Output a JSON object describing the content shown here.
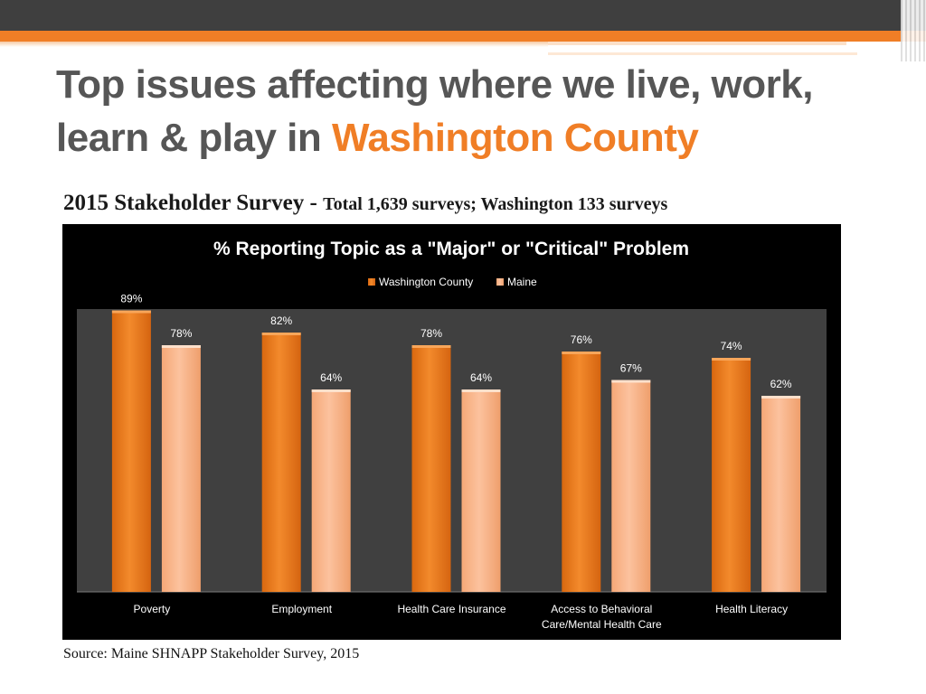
{
  "slide": {
    "title_part1": "Top issues affecting where we live, work,",
    "title_part2": "learn & play in ",
    "title_highlight": "Washington County",
    "subtitle_bold": "2015 Stakeholder Survey - ",
    "subtitle_rest": "Total 1,639 surveys; Washington 133 surveys",
    "source": "Source: Maine SHNAPP Stakeholder Survey, 2015"
  },
  "colors": {
    "accent": "#f07e26",
    "title_text": "#565656",
    "series_washington": "#ee7d1e",
    "series_maine": "#fbb588",
    "plot_background": "#404040"
  },
  "chart_data": {
    "type": "bar",
    "title": "% Reporting Topic as a \"Major\" or \"Critical\" Problem",
    "categories": [
      [
        "Poverty"
      ],
      [
        "Employment"
      ],
      [
        "Health Care Insurance"
      ],
      [
        "Access to Behavioral",
        "Care/Mental Health Care"
      ],
      [
        "Health Literacy"
      ]
    ],
    "series": [
      {
        "name": "Washington County",
        "values": [
          89,
          82,
          78,
          76,
          74
        ],
        "labels": [
          "89%",
          "82%",
          "78%",
          "76%",
          "74%"
        ]
      },
      {
        "name": "Maine",
        "values": [
          78,
          64,
          64,
          67,
          62
        ],
        "labels": [
          "78%",
          "64%",
          "64%",
          "67%",
          "62%"
        ]
      }
    ],
    "ylim": [
      0,
      100
    ],
    "grid": false,
    "legend": "top-center"
  }
}
